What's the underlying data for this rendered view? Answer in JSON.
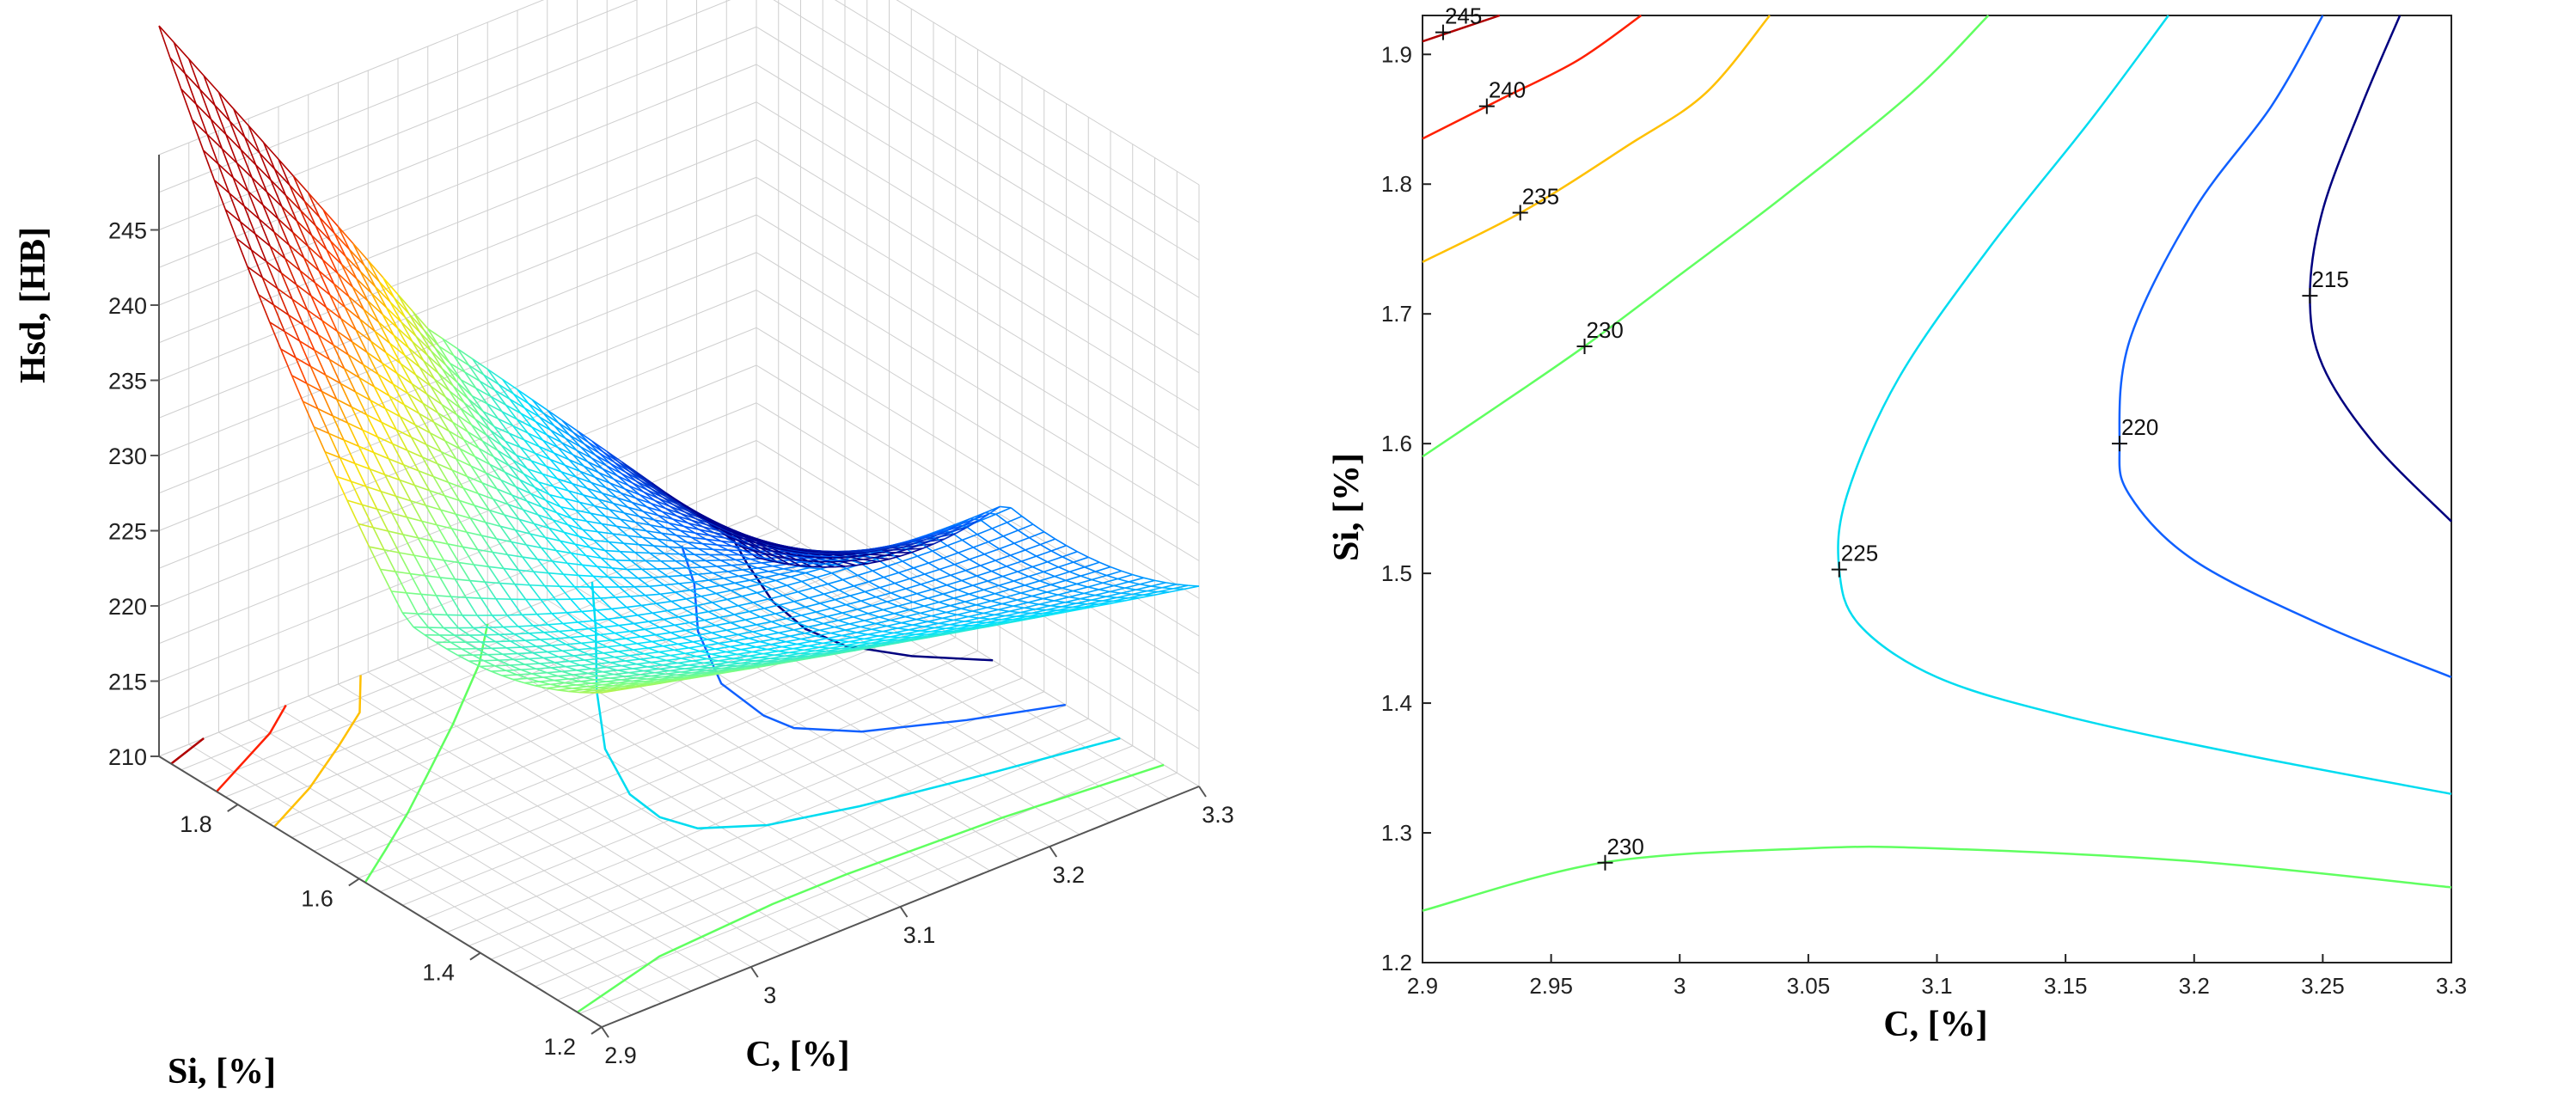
{
  "chart_data": [
    {
      "type": "surface",
      "zlabel": "Hsd, [HB]",
      "ylabel": "Si, [%]",
      "xlabel": "C, [%]",
      "z_ticks": [
        245,
        240,
        235,
        230,
        225,
        220,
        215,
        210
      ],
      "z_tick_labels": [
        "245",
        "240",
        "235",
        "230",
        "225",
        "220",
        "215",
        "210"
      ],
      "si_ticks": [
        1.8,
        1.6,
        1.4,
        1.2
      ],
      "si_tick_labels": [
        "1.8",
        "1.6",
        "1.4",
        "1.2"
      ],
      "c_ticks": [
        2.9,
        3.0,
        3.1,
        3.2,
        3.3
      ],
      "c_tick_labels": [
        "2.9",
        "3",
        "3.1",
        "3.2",
        "3.3"
      ],
      "zlim": [
        210,
        250
      ],
      "xlim": [
        2.9,
        3.3
      ],
      "ylim": [
        1.2,
        1.93
      ],
      "colormap": [
        "#00008f",
        "#0060ff",
        "#00e0ff",
        "#80ff80",
        "#ffe000",
        "#ff4000",
        "#b00000"
      ]
    },
    {
      "type": "contour",
      "xlabel": "C, [%]",
      "ylabel": "Si, [%]",
      "x_ticks": [
        2.9,
        2.95,
        3.0,
        3.05,
        3.1,
        3.15,
        3.2,
        3.25,
        3.3
      ],
      "x_tick_labels": [
        "2.9",
        "2.95",
        "3",
        "3.05",
        "3.1",
        "3.15",
        "3.2",
        "3.25",
        "3.3"
      ],
      "y_ticks": [
        1.2,
        1.3,
        1.4,
        1.5,
        1.6,
        1.7,
        1.8,
        1.9
      ],
      "y_tick_labels": [
        "1.2",
        "1.3",
        "1.4",
        "1.5",
        "1.6",
        "1.7",
        "1.8",
        "1.9"
      ],
      "xlim": [
        2.9,
        3.3
      ],
      "ylim": [
        1.2,
        1.93
      ],
      "levels": [
        {
          "label": "245",
          "color": "#b00000",
          "points": [
            [
              2.9,
              1.91
            ],
            [
              2.93,
              1.93
            ]
          ],
          "mark": [
            2.908,
            1.917
          ]
        },
        {
          "label": "240",
          "color": "#ff2000",
          "points": [
            [
              2.9,
              1.835
            ],
            [
              2.93,
              1.865
            ],
            [
              2.96,
              1.895
            ],
            [
              2.985,
              1.93
            ]
          ],
          "mark": [
            2.925,
            1.86
          ]
        },
        {
          "label": "235",
          "color": "#ffc000",
          "points": [
            [
              2.9,
              1.74
            ],
            [
              2.94,
              1.78
            ],
            [
              2.98,
              1.83
            ],
            [
              3.01,
              1.87
            ],
            [
              3.035,
              1.93
            ]
          ],
          "mark": [
            2.938,
            1.778
          ]
        },
        {
          "label": "230",
          "color": "#60ff60",
          "points": [
            [
              2.9,
              1.59
            ],
            [
              2.93,
              1.63
            ],
            [
              2.963,
              1.675
            ],
            [
              3.0,
              1.73
            ],
            [
              3.04,
              1.79
            ],
            [
              3.09,
              1.87
            ],
            [
              3.12,
              1.93
            ]
          ],
          "mark": [
            2.963,
            1.675
          ]
        },
        {
          "label": "230",
          "color": "#60ff60",
          "points": [
            [
              2.9,
              1.24
            ],
            [
              2.97,
              1.277
            ],
            [
              3.05,
              1.288
            ],
            [
              3.1,
              1.288
            ],
            [
              3.2,
              1.278
            ],
            [
              3.3,
              1.258
            ]
          ],
          "mark": [
            2.971,
            1.277
          ]
        },
        {
          "label": "225",
          "color": "#00dcf0",
          "points": [
            [
              3.3,
              1.33
            ],
            [
              3.22,
              1.36
            ],
            [
              3.15,
              1.39
            ],
            [
              3.1,
              1.42
            ],
            [
              3.07,
              1.46
            ],
            [
              3.062,
              1.503
            ],
            [
              3.065,
              1.56
            ],
            [
              3.085,
              1.65
            ],
            [
              3.12,
              1.75
            ],
            [
              3.16,
              1.85
            ],
            [
              3.19,
              1.93
            ]
          ],
          "mark": [
            3.062,
            1.503
          ]
        },
        {
          "label": "220",
          "color": "#1060ff",
          "points": [
            [
              3.3,
              1.42
            ],
            [
              3.25,
              1.46
            ],
            [
              3.2,
              1.51
            ],
            [
              3.175,
              1.56
            ],
            [
              3.171,
              1.6
            ],
            [
              3.175,
              1.68
            ],
            [
              3.2,
              1.78
            ],
            [
              3.23,
              1.86
            ],
            [
              3.25,
              1.93
            ]
          ],
          "mark": [
            3.171,
            1.6
          ]
        },
        {
          "label": "215",
          "color": "#00007f",
          "points": [
            [
              3.3,
              1.54
            ],
            [
              3.27,
              1.6
            ],
            [
              3.25,
              1.66
            ],
            [
              3.245,
              1.714
            ],
            [
              3.25,
              1.78
            ],
            [
              3.265,
              1.86
            ],
            [
              3.28,
              1.93
            ]
          ],
          "mark": [
            3.245,
            1.714
          ]
        }
      ]
    }
  ]
}
